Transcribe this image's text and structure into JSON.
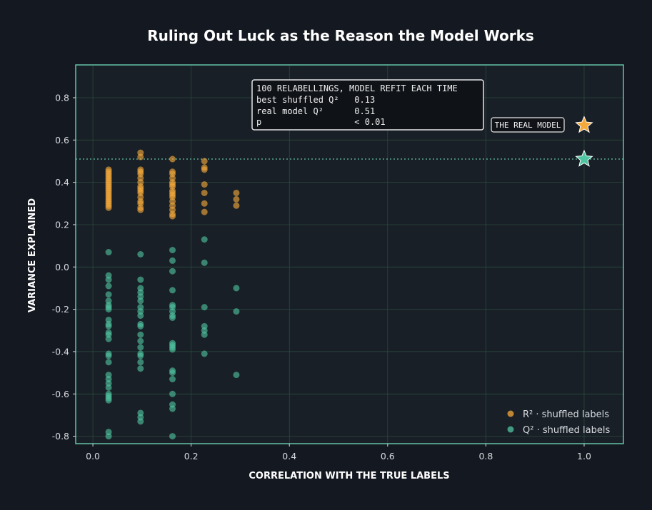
{
  "chart_data": {
    "type": "scatter",
    "title": "Ruling Out Luck as the Reason the Model Works",
    "xlabel": "CORRELATION WITH THE TRUE LABELS",
    "ylabel": "VARIANCE EXPLAINED",
    "xlim": [
      -0.035,
      1.08
    ],
    "ylim": [
      -0.835,
      0.955
    ],
    "xticks": [
      "0.0",
      "0.2",
      "0.4",
      "0.6",
      "0.8",
      "1.0"
    ],
    "yticks": [
      "-0.8",
      "-0.6",
      "-0.4",
      "-0.2",
      "0.0",
      "0.2",
      "0.4",
      "0.6",
      "0.8"
    ],
    "grid": true,
    "legend_position": "bottom-right",
    "colors": {
      "r2": "#f4a93b",
      "q2": "#4fc4a0",
      "frame": "#63c2a8",
      "background": "#181f26"
    },
    "series": [
      {
        "name": "R² · shuffled labels",
        "color": "#f4a93b",
        "points": [
          [
            0.032,
            0.46
          ],
          [
            0.032,
            0.45
          ],
          [
            0.032,
            0.44
          ],
          [
            0.032,
            0.43
          ],
          [
            0.032,
            0.42
          ],
          [
            0.032,
            0.41
          ],
          [
            0.032,
            0.4
          ],
          [
            0.032,
            0.39
          ],
          [
            0.032,
            0.38
          ],
          [
            0.032,
            0.37
          ],
          [
            0.032,
            0.36
          ],
          [
            0.032,
            0.35
          ],
          [
            0.032,
            0.34
          ],
          [
            0.032,
            0.33
          ],
          [
            0.032,
            0.32
          ],
          [
            0.032,
            0.31
          ],
          [
            0.032,
            0.3
          ],
          [
            0.032,
            0.29
          ],
          [
            0.032,
            0.28
          ],
          [
            0.097,
            0.54
          ],
          [
            0.097,
            0.52
          ],
          [
            0.097,
            0.46
          ],
          [
            0.097,
            0.45
          ],
          [
            0.097,
            0.44
          ],
          [
            0.097,
            0.42
          ],
          [
            0.097,
            0.4
          ],
          [
            0.097,
            0.38
          ],
          [
            0.097,
            0.37
          ],
          [
            0.097,
            0.36
          ],
          [
            0.097,
            0.35
          ],
          [
            0.097,
            0.33
          ],
          [
            0.097,
            0.31
          ],
          [
            0.097,
            0.3
          ],
          [
            0.097,
            0.28
          ],
          [
            0.097,
            0.27
          ],
          [
            0.162,
            0.51
          ],
          [
            0.162,
            0.45
          ],
          [
            0.162,
            0.44
          ],
          [
            0.162,
            0.42
          ],
          [
            0.162,
            0.4
          ],
          [
            0.162,
            0.39
          ],
          [
            0.162,
            0.38
          ],
          [
            0.162,
            0.36
          ],
          [
            0.162,
            0.35
          ],
          [
            0.162,
            0.34
          ],
          [
            0.162,
            0.33
          ],
          [
            0.162,
            0.31
          ],
          [
            0.162,
            0.29
          ],
          [
            0.162,
            0.27
          ],
          [
            0.162,
            0.25
          ],
          [
            0.162,
            0.24
          ],
          [
            0.227,
            0.5
          ],
          [
            0.227,
            0.47
          ],
          [
            0.227,
            0.46
          ],
          [
            0.227,
            0.39
          ],
          [
            0.227,
            0.35
          ],
          [
            0.227,
            0.3
          ],
          [
            0.227,
            0.26
          ],
          [
            0.292,
            0.35
          ],
          [
            0.292,
            0.32
          ],
          [
            0.292,
            0.29
          ]
        ]
      },
      {
        "name": "Q² · shuffled labels",
        "color": "#4fc4a0",
        "points": [
          [
            0.032,
            0.07
          ],
          [
            0.032,
            -0.04
          ],
          [
            0.032,
            -0.06
          ],
          [
            0.032,
            -0.09
          ],
          [
            0.032,
            -0.13
          ],
          [
            0.032,
            -0.16
          ],
          [
            0.032,
            -0.18
          ],
          [
            0.032,
            -0.19
          ],
          [
            0.032,
            -0.2
          ],
          [
            0.032,
            -0.25
          ],
          [
            0.032,
            -0.27
          ],
          [
            0.032,
            -0.28
          ],
          [
            0.032,
            -0.31
          ],
          [
            0.032,
            -0.32
          ],
          [
            0.032,
            -0.34
          ],
          [
            0.032,
            -0.41
          ],
          [
            0.032,
            -0.42
          ],
          [
            0.032,
            -0.45
          ],
          [
            0.032,
            -0.51
          ],
          [
            0.032,
            -0.53
          ],
          [
            0.032,
            -0.55
          ],
          [
            0.032,
            -0.57
          ],
          [
            0.032,
            -0.6
          ],
          [
            0.032,
            -0.61
          ],
          [
            0.032,
            -0.62
          ],
          [
            0.032,
            -0.63
          ],
          [
            0.032,
            -0.78
          ],
          [
            0.032,
            -0.8
          ],
          [
            0.097,
            0.06
          ],
          [
            0.097,
            -0.06
          ],
          [
            0.097,
            -0.1
          ],
          [
            0.097,
            -0.12
          ],
          [
            0.097,
            -0.14
          ],
          [
            0.097,
            -0.16
          ],
          [
            0.097,
            -0.19
          ],
          [
            0.097,
            -0.21
          ],
          [
            0.097,
            -0.23
          ],
          [
            0.097,
            -0.27
          ],
          [
            0.097,
            -0.28
          ],
          [
            0.097,
            -0.32
          ],
          [
            0.097,
            -0.35
          ],
          [
            0.097,
            -0.38
          ],
          [
            0.097,
            -0.41
          ],
          [
            0.097,
            -0.42
          ],
          [
            0.097,
            -0.45
          ],
          [
            0.097,
            -0.48
          ],
          [
            0.097,
            -0.69
          ],
          [
            0.097,
            -0.71
          ],
          [
            0.097,
            -0.73
          ],
          [
            0.162,
            0.08
          ],
          [
            0.162,
            0.03
          ],
          [
            0.162,
            -0.02
          ],
          [
            0.162,
            -0.11
          ],
          [
            0.162,
            -0.18
          ],
          [
            0.162,
            -0.19
          ],
          [
            0.162,
            -0.21
          ],
          [
            0.162,
            -0.23
          ],
          [
            0.162,
            -0.24
          ],
          [
            0.162,
            -0.36
          ],
          [
            0.162,
            -0.37
          ],
          [
            0.162,
            -0.38
          ],
          [
            0.162,
            -0.39
          ],
          [
            0.162,
            -0.49
          ],
          [
            0.162,
            -0.5
          ],
          [
            0.162,
            -0.53
          ],
          [
            0.162,
            -0.6
          ],
          [
            0.162,
            -0.65
          ],
          [
            0.162,
            -0.67
          ],
          [
            0.162,
            -0.8
          ],
          [
            0.227,
            0.13
          ],
          [
            0.227,
            0.02
          ],
          [
            0.227,
            -0.19
          ],
          [
            0.227,
            -0.28
          ],
          [
            0.227,
            -0.3
          ],
          [
            0.227,
            -0.32
          ],
          [
            0.227,
            -0.41
          ],
          [
            0.292,
            -0.1
          ],
          [
            0.292,
            -0.21
          ],
          [
            0.292,
            -0.51
          ]
        ]
      }
    ],
    "real_model": {
      "label": "THE REAL MODEL",
      "x": 1.0,
      "r2": 0.67,
      "q2": 0.51
    },
    "annotation": {
      "lines": [
        "100 RELABELLINGS, MODEL REFIT EACH TIME",
        "best shuffled Q²   0.13",
        "real model Q²      0.51",
        "p                  < 0.01"
      ]
    }
  }
}
